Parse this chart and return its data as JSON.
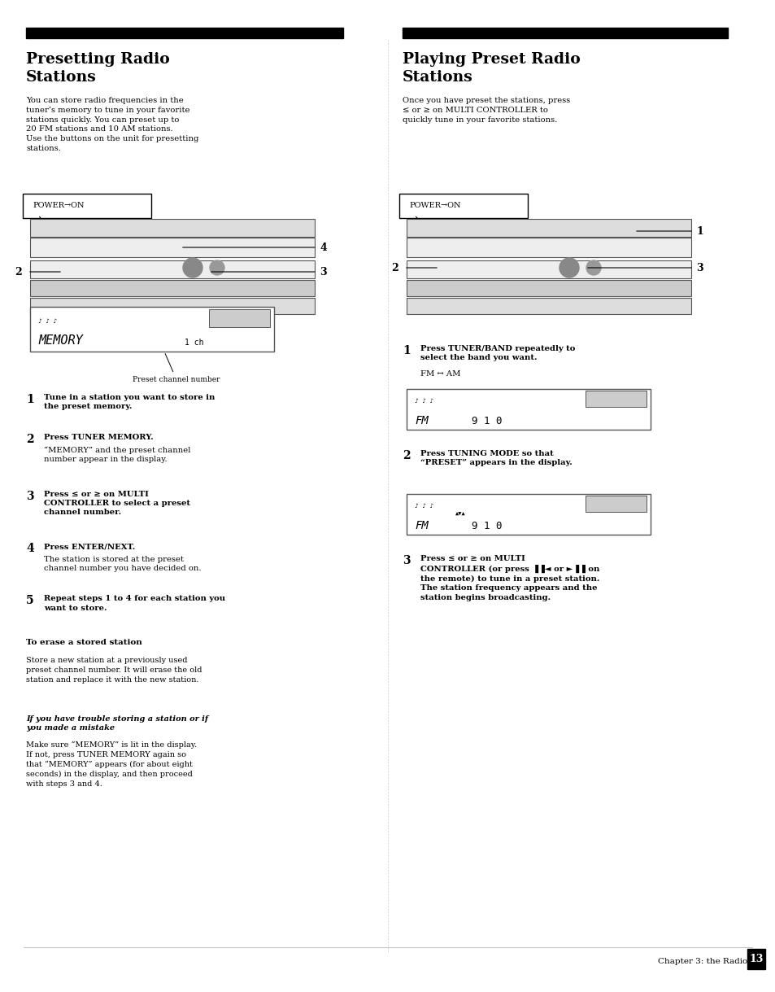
{
  "page_width": 9.54,
  "page_height": 12.19,
  "bg_color": "#ffffff",
  "left_title": "Presetting Radio\nStations",
  "right_title": "Playing Preset Radio\nStations",
  "left_intro": "You can store radio frequencies in the\ntuner’s memory to tune in your favorite\nstations quickly. You can preset up to\n20 FM stations and 10 AM stations.\nUse the buttons on the unit for presetting\nstations.",
  "right_intro": "Once you have preset the stations, press\n≤ or ≥ on MULTI CONTROLLER to\nquickly tune in your favorite stations.",
  "left_steps": [
    {
      "num": "1",
      "bold": "Tune in a station you want to store in\nthe preset memory.",
      "normal": ""
    },
    {
      "num": "2",
      "bold": "Press TUNER MEMORY.",
      "normal": "“MEMORY” and the preset channel\nnumber appear in the display."
    },
    {
      "num": "3",
      "bold": "Press ≤ or ≥ on MULTI\nCONTROLLER to select a preset\nchannel number.",
      "normal": ""
    },
    {
      "num": "4",
      "bold": "Press ENTER/NEXT.",
      "normal": "The station is stored at the preset\nchannel number you have decided on."
    },
    {
      "num": "5",
      "bold": "Repeat steps 1 to 4 for each station you\nwant to store.",
      "normal": ""
    }
  ],
  "erase_title": "To erase a stored station",
  "erase_text": "Store a new station at a previously used\npreset channel number. It will erase the old\nstation and replace it with the new station.",
  "trouble_title": "If you have trouble storing a station or if\nyou made a mistake",
  "trouble_text": "Make sure “MEMORY” is lit in the display.\nIf not, press TUNER MEMORY again so\nthat “MEMORY” appears (for about eight\nseconds) in the display, and then proceed\nwith steps 3 and 4.",
  "right_steps": [
    {
      "num": "1",
      "bold": "Press TUNER/BAND repeatedly to\nselect the band you want.",
      "normal": "FM ↔ AM"
    },
    {
      "num": "2",
      "bold": "Press TUNING MODE so that\n“PRESET” appears in the display.",
      "normal": ""
    },
    {
      "num": "3",
      "bold": "Press ≤ or ≥ on MULTI\nCONTROLLER (or press ▐▐◄ or ►▐▐ on\nthe remote) to tune in a preset station.\nThe station frequency appears and the\nstation begins broadcasting.",
      "normal": ""
    }
  ],
  "footer_text": "Chapter 3: the Radio",
  "footer_page": "13",
  "preset_channel_label": "Preset channel number"
}
